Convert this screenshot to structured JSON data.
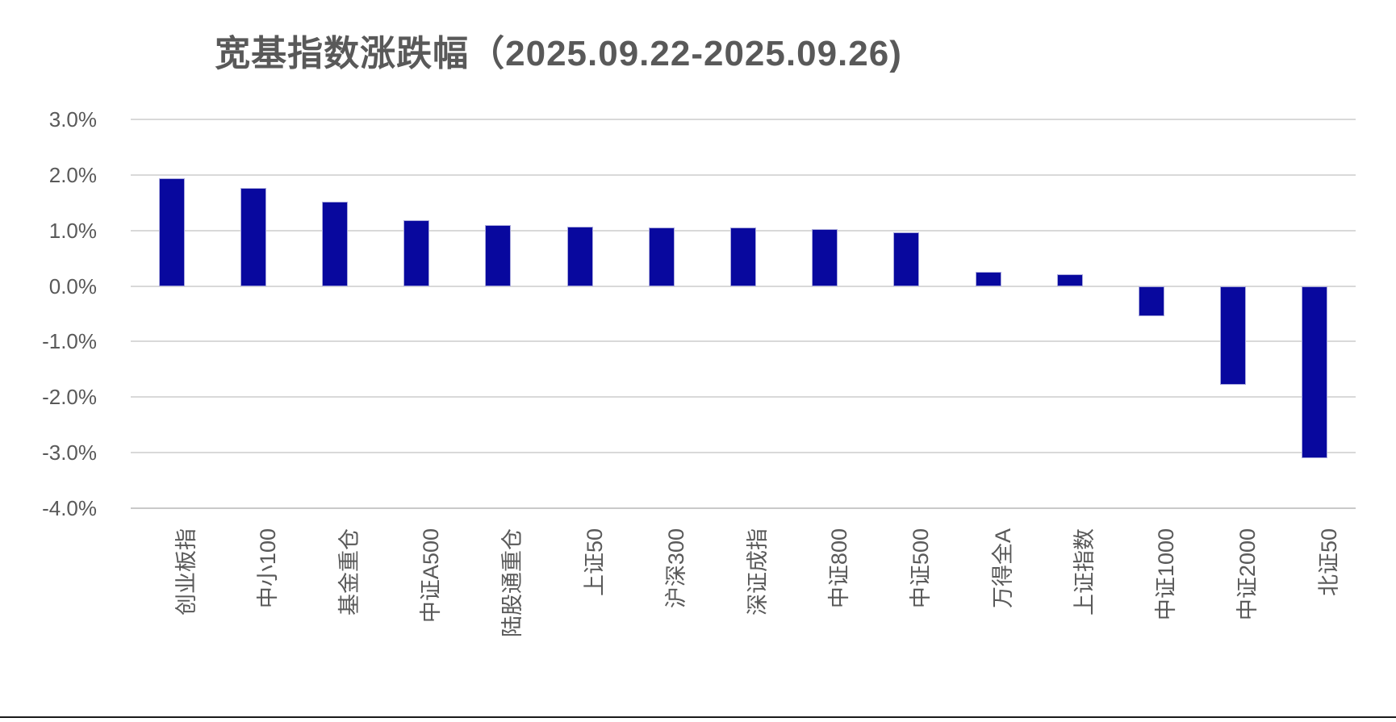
{
  "chart_data": {
    "type": "bar",
    "title": "宽基指数涨跌幅（2025.09.22-2025.09.26)",
    "categories": [
      "创业板指",
      "中小100",
      "基金重仓",
      "中证A500",
      "陆股通重仓",
      "上证50",
      "沪深300",
      "深证成指",
      "中证800",
      "中证500",
      "万得全A",
      "上证指数",
      "中证1000",
      "中证2000",
      "北证50"
    ],
    "values": [
      1.94,
      1.76,
      1.52,
      1.19,
      1.1,
      1.07,
      1.06,
      1.05,
      1.03,
      0.97,
      0.25,
      0.21,
      -0.55,
      -1.78,
      -3.1
    ],
    "xlabel": "",
    "ylabel": "",
    "ylim": [
      -4,
      3
    ],
    "yticks": [
      3,
      2,
      1,
      0,
      -1,
      -2,
      -3,
      -4
    ],
    "ytick_labels": [
      "3.0%",
      "2.0%",
      "1.0%",
      "0.0%",
      "-1.0%",
      "-2.0%",
      "-3.0%",
      "-4.0%"
    ],
    "grid": true,
    "legend": "none",
    "x_labels_rotation": "vertical-bottom-to-top",
    "bar_color": "#08089e",
    "bar_edge_color": "#a9a9dc",
    "gridline_color": "#d9d9d9",
    "text_color": "#595959",
    "background_color": "#ffffff"
  },
  "footer": {
    "rule_color": "#1a1a1a"
  }
}
